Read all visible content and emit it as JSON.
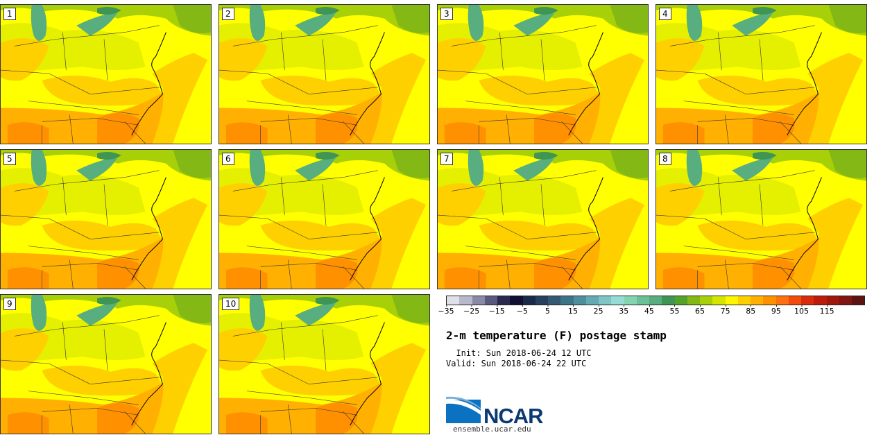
{
  "panels": [
    "1",
    "2",
    "3",
    "4",
    "5",
    "6",
    "7",
    "8",
    "9",
    "10"
  ],
  "colorbar": {
    "colors": [
      "#e0e0ea",
      "#b8b8cc",
      "#8a8aa6",
      "#5a5a7e",
      "#2a2a50",
      "#101032",
      "#1a2a4a",
      "#27405c",
      "#335a72",
      "#3f7488",
      "#4d8f9c",
      "#64aab2",
      "#80c4c6",
      "#94dcd4",
      "#84d4b0",
      "#6cc096",
      "#58ae7e",
      "#3f9654",
      "#55a228",
      "#84b814",
      "#a8d008",
      "#d4e600",
      "#fff600",
      "#ffd000",
      "#ffb000",
      "#ff9000",
      "#ff7010",
      "#f24c0c",
      "#d82c0c",
      "#bc1c0c",
      "#a0180c",
      "#801610",
      "#5c1410"
    ],
    "ticks": [
      "−35",
      "−25",
      "−15",
      "−5",
      "5",
      "15",
      "25",
      "35",
      "45",
      "55",
      "65",
      "75",
      "85",
      "95",
      "105",
      "115"
    ]
  },
  "title": "2-m temperature (F) postage stamp",
  "init": "  Init: Sun 2018-06-24 12 UTC",
  "valid": "Valid: Sun 2018-06-24 22 UTC",
  "logo_text": "NCAR",
  "site": "ensemble.ucar.edu"
}
